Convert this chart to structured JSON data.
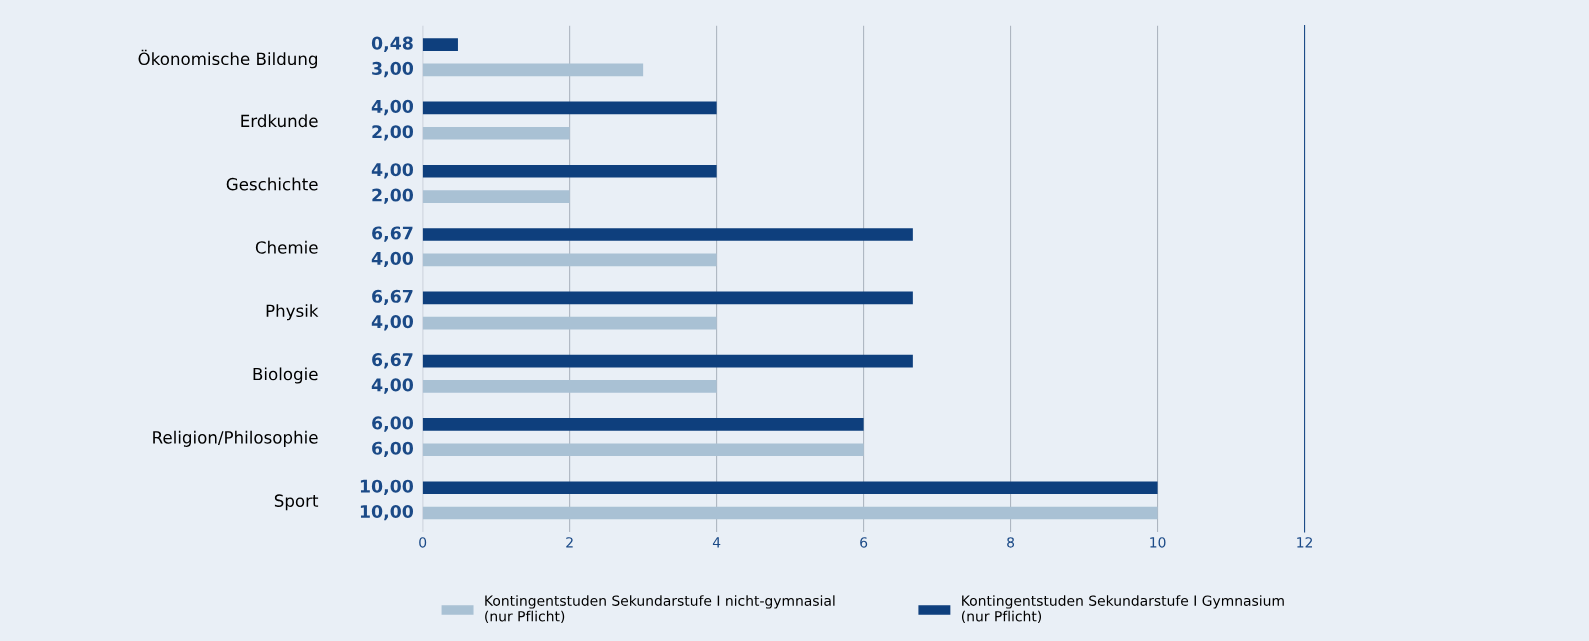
{
  "chart_data": {
    "type": "bar",
    "orientation": "horizontal",
    "categories": [
      "Ökonomische Bildung",
      "Erdkunde",
      "Geschichte",
      "Chemie",
      "Physik",
      "Biologie",
      "Religion/Philosophie",
      "Sport"
    ],
    "series": [
      {
        "name": "Kontingentstuden Sekundarstufe I nicht-gymnasial\n(nur Pflicht)",
        "color": "#a9c1d4",
        "values": [
          3.0,
          2.0,
          2.0,
          4.0,
          4.0,
          4.0,
          6.0,
          10.0
        ],
        "value_labels": [
          "3,00",
          "2,00",
          "2,00",
          "4,00",
          "4,00",
          "4,00",
          "6,00",
          "10,00"
        ]
      },
      {
        "name": "Kontingentstuden Sekundarstufe I Gymnasium\n(nur Pflicht)",
        "color": "#0e3f7d",
        "values": [
          0.48,
          4.0,
          4.0,
          6.67,
          6.67,
          6.67,
          6.0,
          10.0
        ],
        "value_labels": [
          "0,48",
          "4,00",
          "4,00",
          "6,67",
          "6,67",
          "6,67",
          "6,00",
          "10,00"
        ]
      }
    ],
    "xlim": [
      0,
      12
    ],
    "xticks": [
      0,
      2,
      4,
      6,
      8,
      10,
      12
    ],
    "grid": "x",
    "legend": "bottom"
  }
}
